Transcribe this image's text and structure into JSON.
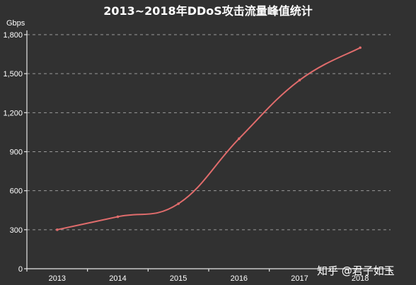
{
  "chart_data": {
    "type": "line",
    "title": "2013~2018年DDoS攻击流量峰值统计",
    "xlabel": "",
    "ylabel": "Gbps",
    "categories": [
      "2013",
      "2014",
      "2015",
      "2016",
      "2017",
      "2018"
    ],
    "series": [
      {
        "values": [
          300,
          400,
          500,
          1000,
          1450,
          1700
        ]
      }
    ],
    "ylim": [
      0,
      1800
    ],
    "yticks": [
      "0",
      "300",
      "600",
      "900",
      "1,200",
      "1,500",
      "1,800"
    ],
    "grid": true,
    "line_color": "#e06c6c"
  },
  "watermark": {
    "text": "知乎 @君子如玉"
  }
}
